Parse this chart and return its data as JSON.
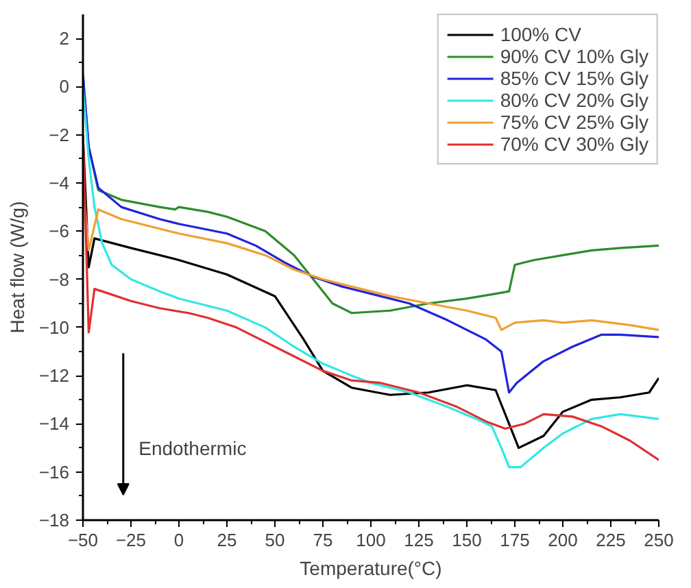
{
  "chart_data": {
    "type": "line",
    "xlabel": "Temperature(°C)",
    "ylabel": "Heat flow (W/g)",
    "xlim": [
      -50,
      250
    ],
    "ylim": [
      -18,
      3
    ],
    "xticks": [
      -50,
      -25,
      0,
      25,
      50,
      75,
      100,
      125,
      150,
      175,
      200,
      225,
      250
    ],
    "yticks": [
      -18,
      -16,
      -14,
      -12,
      -10,
      -8,
      -6,
      -4,
      -2,
      0,
      2
    ],
    "grid": false,
    "legend": "top right",
    "marker": "none",
    "line_style": "solid",
    "annotations": [
      "Endothermic"
    ],
    "series": [
      {
        "name": "100% CV",
        "color": "#000000",
        "x": [
          -50,
          -47,
          -44,
          -25,
          0,
          25,
          50,
          65,
          75,
          90,
          110,
          130,
          150,
          165,
          172,
          177,
          190,
          200,
          215,
          230,
          245,
          250
        ],
        "values": [
          -2,
          -7.5,
          -6.3,
          -6.7,
          -7.2,
          -7.8,
          -8.7,
          -10.5,
          -11.8,
          -12.5,
          -12.8,
          -12.7,
          -12.4,
          -12.6,
          -14,
          -15,
          -14.5,
          -13.5,
          -13,
          -12.9,
          -12.7,
          -12.1
        ]
      },
      {
        "name": "90% CV 10% Gly",
        "color": "#2e8b2e",
        "x": [
          -50,
          -47,
          -42,
          -30,
          -10,
          -2,
          0,
          15,
          25,
          45,
          60,
          70,
          80,
          90,
          110,
          130,
          150,
          165,
          172,
          175,
          185,
          200,
          215,
          230,
          250
        ],
        "values": [
          0.5,
          -2.5,
          -4.3,
          -4.7,
          -5,
          -5.1,
          -5,
          -5.2,
          -5.4,
          -6,
          -7,
          -8,
          -9,
          -9.4,
          -9.3,
          -9,
          -8.8,
          -8.6,
          -8.5,
          -7.4,
          -7.2,
          -7,
          -6.8,
          -6.7,
          -6.6
        ]
      },
      {
        "name": "85% CV 15% Gly",
        "color": "#2222dd",
        "x": [
          -50,
          -47,
          -42,
          -30,
          -10,
          0,
          25,
          40,
          55,
          70,
          85,
          100,
          120,
          140,
          160,
          168,
          172,
          176,
          190,
          205,
          220,
          230,
          250
        ],
        "values": [
          0.5,
          -2.5,
          -4.2,
          -5,
          -5.5,
          -5.7,
          -6.1,
          -6.6,
          -7.3,
          -7.9,
          -8.3,
          -8.6,
          -9,
          -9.7,
          -10.5,
          -11,
          -12.7,
          -12.3,
          -11.4,
          -10.8,
          -10.3,
          -10.3,
          -10.4
        ]
      },
      {
        "name": "80% CV 20% Gly",
        "color": "#33e6e6",
        "x": [
          -50,
          -47,
          -44,
          -40,
          -35,
          -25,
          -10,
          0,
          25,
          45,
          60,
          75,
          90,
          100,
          120,
          140,
          155,
          163,
          168,
          172,
          178,
          190,
          200,
          215,
          230,
          250
        ],
        "values": [
          0,
          -3,
          -5,
          -6.5,
          -7.4,
          -8,
          -8.5,
          -8.8,
          -9.3,
          -10,
          -10.8,
          -11.5,
          -12,
          -12.3,
          -12.7,
          -13.3,
          -13.8,
          -14.1,
          -15,
          -15.8,
          -15.8,
          -15,
          -14.4,
          -13.8,
          -13.6,
          -13.8
        ]
      },
      {
        "name": "75% CV 25% Gly",
        "color": "#f0a030",
        "x": [
          -50,
          -47,
          -42,
          -30,
          -10,
          0,
          25,
          45,
          60,
          75,
          90,
          110,
          130,
          150,
          165,
          168,
          175,
          190,
          200,
          215,
          235,
          250
        ],
        "values": [
          -4,
          -6.8,
          -5.1,
          -5.5,
          -5.9,
          -6.1,
          -6.5,
          -7,
          -7.6,
          -8,
          -8.3,
          -8.7,
          -9,
          -9.3,
          -9.6,
          -10.1,
          -9.8,
          -9.7,
          -9.8,
          -9.7,
          -9.9,
          -10.1
        ]
      },
      {
        "name": "70% CV 30% Gly",
        "color": "#e03030",
        "x": [
          -50,
          -47,
          -44,
          -40,
          -25,
          -10,
          5,
          15,
          30,
          45,
          60,
          75,
          90,
          105,
          125,
          145,
          160,
          170,
          180,
          190,
          205,
          220,
          235,
          250
        ],
        "values": [
          -2,
          -10.2,
          -8.4,
          -8.5,
          -8.9,
          -9.2,
          -9.4,
          -9.6,
          -10,
          -10.6,
          -11.2,
          -11.8,
          -12.2,
          -12.3,
          -12.7,
          -13.3,
          -13.9,
          -14.2,
          -14,
          -13.6,
          -13.7,
          -14.1,
          -14.7,
          -15.5
        ]
      }
    ]
  }
}
